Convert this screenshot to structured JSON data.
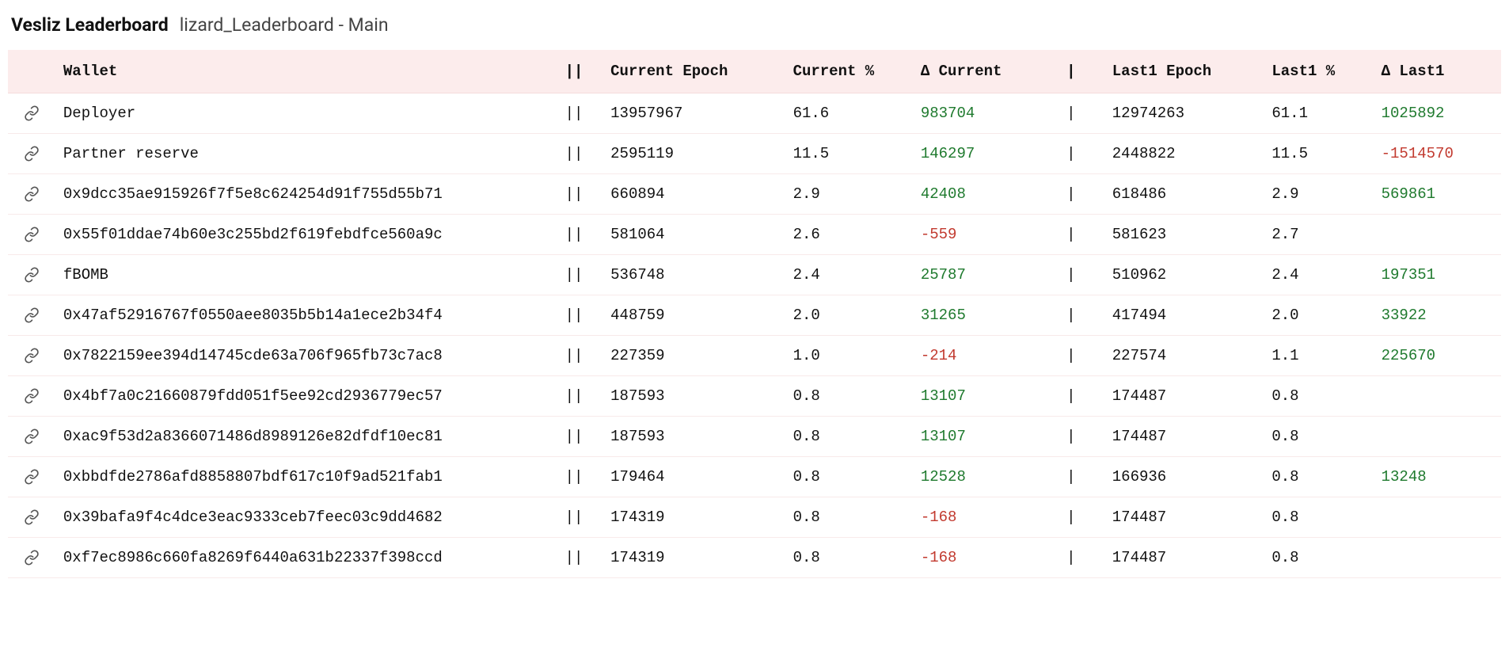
{
  "header": {
    "title": "Vesliz Leaderboard",
    "subtitle": "lizard_Leaderboard - Main"
  },
  "table": {
    "columns": {
      "wallet": "Wallet",
      "sep1": "||",
      "current_epoch": "Current Epoch",
      "current_pct": "Current %",
      "delta_current": "Δ Current",
      "sep2": "|",
      "last1_epoch": "Last1 Epoch",
      "last1_pct": "Last1 %",
      "delta_last1": "Δ Last1"
    },
    "rows": [
      {
        "wallet": "Deployer",
        "sep1": "||",
        "current_epoch": "13957967",
        "current_pct": "61.6",
        "delta_current": "983704",
        "sep2": "|",
        "last1_epoch": "12974263",
        "last1_pct": "61.1",
        "delta_last1": "1025892"
      },
      {
        "wallet": "Partner reserve",
        "sep1": "||",
        "current_epoch": "2595119",
        "current_pct": "11.5",
        "delta_current": "146297",
        "sep2": "|",
        "last1_epoch": "2448822",
        "last1_pct": "11.5",
        "delta_last1": "-1514570"
      },
      {
        "wallet": "0x9dcc35ae915926f7f5e8c624254d91f755d55b71",
        "sep1": "||",
        "current_epoch": "660894",
        "current_pct": "2.9",
        "delta_current": "42408",
        "sep2": "|",
        "last1_epoch": "618486",
        "last1_pct": "2.9",
        "delta_last1": "569861"
      },
      {
        "wallet": "0x55f01ddae74b60e3c255bd2f619febdfce560a9c",
        "sep1": "||",
        "current_epoch": "581064",
        "current_pct": "2.6",
        "delta_current": "-559",
        "sep2": "|",
        "last1_epoch": "581623",
        "last1_pct": "2.7",
        "delta_last1": ""
      },
      {
        "wallet": "fBOMB",
        "sep1": "||",
        "current_epoch": "536748",
        "current_pct": "2.4",
        "delta_current": "25787",
        "sep2": "|",
        "last1_epoch": "510962",
        "last1_pct": "2.4",
        "delta_last1": "197351"
      },
      {
        "wallet": "0x47af52916767f0550aee8035b5b14a1ece2b34f4",
        "sep1": "||",
        "current_epoch": "448759",
        "current_pct": "2.0",
        "delta_current": "31265",
        "sep2": "|",
        "last1_epoch": "417494",
        "last1_pct": "2.0",
        "delta_last1": "33922"
      },
      {
        "wallet": "0x7822159ee394d14745cde63a706f965fb73c7ac8",
        "sep1": "||",
        "current_epoch": "227359",
        "current_pct": "1.0",
        "delta_current": "-214",
        "sep2": "|",
        "last1_epoch": "227574",
        "last1_pct": "1.1",
        "delta_last1": "225670"
      },
      {
        "wallet": "0x4bf7a0c21660879fdd051f5ee92cd2936779ec57",
        "sep1": "||",
        "current_epoch": "187593",
        "current_pct": "0.8",
        "delta_current": "13107",
        "sep2": "|",
        "last1_epoch": "174487",
        "last1_pct": "0.8",
        "delta_last1": ""
      },
      {
        "wallet": "0xac9f53d2a8366071486d8989126e82dfdf10ec81",
        "sep1": "||",
        "current_epoch": "187593",
        "current_pct": "0.8",
        "delta_current": "13107",
        "sep2": "|",
        "last1_epoch": "174487",
        "last1_pct": "0.8",
        "delta_last1": ""
      },
      {
        "wallet": "0xbbdfde2786afd8858807bdf617c10f9ad521fab1",
        "sep1": "||",
        "current_epoch": "179464",
        "current_pct": "0.8",
        "delta_current": "12528",
        "sep2": "|",
        "last1_epoch": "166936",
        "last1_pct": "0.8",
        "delta_last1": "13248"
      },
      {
        "wallet": "0x39bafa9f4c4dce3eac9333ceb7feec03c9dd4682",
        "sep1": "||",
        "current_epoch": "174319",
        "current_pct": "0.8",
        "delta_current": "-168",
        "sep2": "|",
        "last1_epoch": "174487",
        "last1_pct": "0.8",
        "delta_last1": ""
      },
      {
        "wallet": "0xf7ec8986c660fa8269f6440a631b22337f398ccd",
        "sep1": "||",
        "current_epoch": "174319",
        "current_pct": "0.8",
        "delta_current": "-168",
        "sep2": "|",
        "last1_epoch": "174487",
        "last1_pct": "0.8",
        "delta_last1": ""
      }
    ]
  },
  "colors": {
    "header_bg": "#fcecec",
    "row_border": "#f8eaea",
    "positive": "#1f7a2e",
    "negative": "#c23a2f",
    "text": "#111111",
    "subtitle": "#444444",
    "icon": "#555555"
  }
}
